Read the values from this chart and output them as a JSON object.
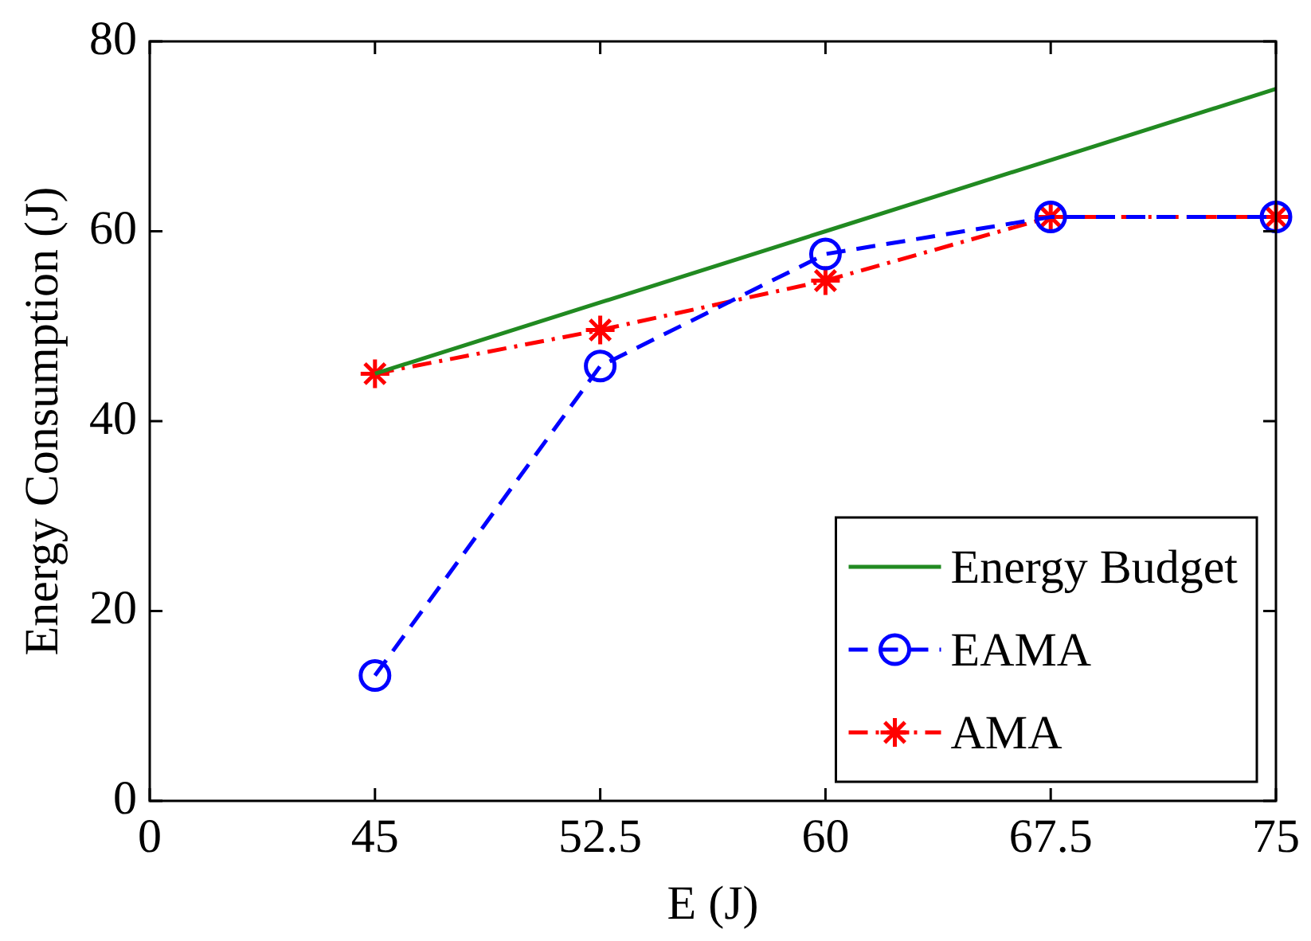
{
  "chart_data": {
    "type": "line",
    "xlabel": "E (J)",
    "ylabel": "Energy Consumption (J)",
    "categories": [
      "0",
      "45",
      "52.5",
      "60",
      "67.5",
      "75"
    ],
    "ylim": [
      0,
      80
    ],
    "yticks": [
      0,
      20,
      40,
      60,
      80
    ],
    "grid": false,
    "legend": "bottom right",
    "series": [
      {
        "name": "Energy Budget",
        "color": "#218a21",
        "values": [
          null,
          45,
          52.5,
          60,
          67.5,
          75
        ],
        "marker": "none",
        "line_style": "solid"
      },
      {
        "name": "EAMA",
        "color": "#0000ff",
        "values": [
          null,
          13.2,
          45.8,
          57.6,
          61.5,
          61.5
        ],
        "marker": "circle",
        "line_style": "dashed"
      },
      {
        "name": "AMA",
        "color": "#ff0000",
        "values": [
          null,
          45,
          49.6,
          54.8,
          61.5,
          61.5
        ],
        "marker": "cross",
        "line_style": "dashdot"
      }
    ]
  }
}
